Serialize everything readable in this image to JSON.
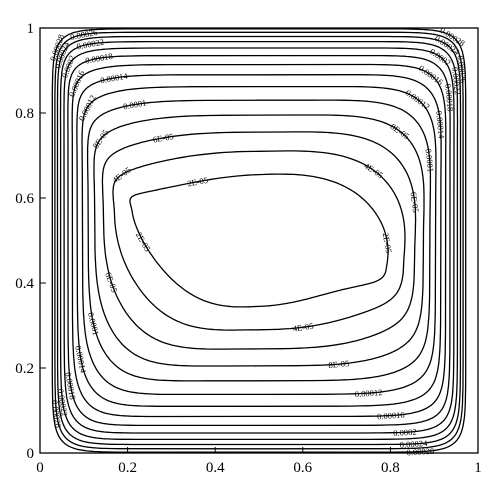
{
  "chart_data": {
    "type": "contour",
    "title": "",
    "xlabel": "",
    "ylabel": "",
    "xlim": [
      0,
      1
    ],
    "ylim": [
      0,
      1
    ],
    "xticks": [
      "0",
      "0.2",
      "0.4",
      "0.6",
      "0.8",
      "1"
    ],
    "yticks": [
      "0",
      "0.2",
      "0.4",
      "0.6",
      "0.8",
      "1"
    ],
    "grid": false,
    "levels": [
      {
        "value": 2e-05,
        "label": "2E-05",
        "xr": 0.29,
        "yr": 0.155,
        "wave": 0.3
      },
      {
        "value": 4e-05,
        "label": "4E-05",
        "xr": 0.33,
        "yr": 0.21,
        "wave": 0.24
      },
      {
        "value": 6e-05,
        "label": "6E-05",
        "xr": 0.355,
        "yr": 0.255,
        "wave": 0.19
      },
      {
        "value": 8e-05,
        "label": "8E-05",
        "xr": 0.375,
        "yr": 0.295,
        "wave": 0.15
      },
      {
        "value": 0.0001,
        "label": "0.0001",
        "xr": 0.39,
        "yr": 0.33,
        "wave": 0.12
      },
      {
        "value": 0.00012,
        "label": "0.00012",
        "xr": 0.403,
        "yr": 0.362,
        "wave": 0.095
      },
      {
        "value": 0.00014,
        "label": "0.00014",
        "xr": 0.415,
        "yr": 0.39,
        "wave": 0.075
      },
      {
        "value": 0.00016,
        "label": "0.00016",
        "xr": 0.426,
        "yr": 0.414,
        "wave": 0.058
      },
      {
        "value": 0.00018,
        "label": "0.00018",
        "xr": 0.436,
        "yr": 0.435,
        "wave": 0.044
      },
      {
        "value": 0.0002,
        "label": "0.0002",
        "xr": 0.445,
        "yr": 0.453,
        "wave": 0.033
      },
      {
        "value": 0.00022,
        "label": "0.00022",
        "xr": 0.453,
        "yr": 0.468,
        "wave": 0.024
      },
      {
        "value": 0.00024,
        "label": "0.00024",
        "xr": 0.46,
        "yr": 0.48,
        "wave": 0.017
      },
      {
        "value": 0.00026,
        "label": "0.00026",
        "xr": 0.466,
        "yr": 0.49,
        "wave": 0.011
      },
      {
        "value": 0.00028,
        "label": "0.00028",
        "xr": 0.472,
        "yr": 0.498,
        "wave": 0.006
      }
    ]
  }
}
